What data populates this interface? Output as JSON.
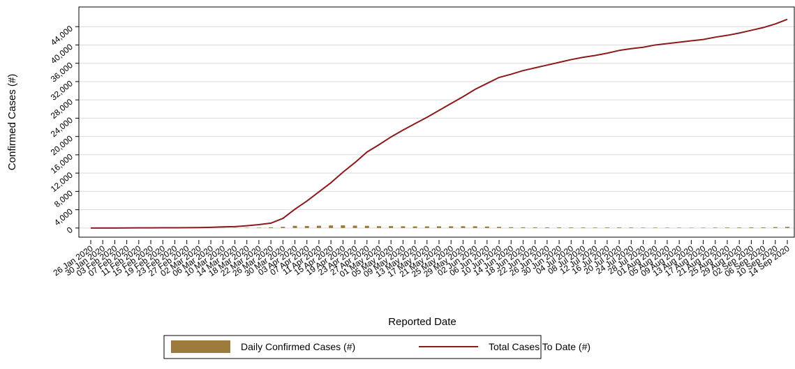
{
  "chart_data": {
    "type": "bar-line",
    "x_label": "Reported Date",
    "y_label": "Confirmed Cases (#)",
    "categories": [
      "26 Jan 2020",
      "30 Jan 2020",
      "03 Feb 2020",
      "07 Feb 2020",
      "11 Feb 2020",
      "15 Feb 2020",
      "19 Feb 2020",
      "23 Feb 2020",
      "27 Feb 2020",
      "02 Mar 2020",
      "06 Mar 2020",
      "10 Mar 2020",
      "14 Mar 2020",
      "18 Mar 2020",
      "22 Mar 2020",
      "26 Mar 2020",
      "30 Mar 2020",
      "03 Apr 2020",
      "07 Apr 2020",
      "11 Apr 2020",
      "15 Apr 2020",
      "19 Apr 2020",
      "23 Apr 2020",
      "27 Apr 2020",
      "01 May 2020",
      "05 May 2020",
      "09 May 2020",
      "13 May 2020",
      "17 May 2020",
      "21 May 2020",
      "25 May 2020",
      "29 May 2020",
      "02 Jun 2020",
      "06 Jun 2020",
      "10 Jun 2020",
      "14 Jun 2020",
      "18 Jun 2020",
      "22 Jun 2020",
      "26 Jun 2020",
      "30 Jun 2020",
      "04 Jul 2020",
      "08 Jul 2020",
      "12 Jul 2020",
      "16 Jul 2020",
      "20 Jul 2020",
      "24 Jul 2020",
      "28 Jul 2020",
      "01 Aug 2020",
      "05 Aug 2020",
      "09 Aug 2020",
      "13 Aug 2020",
      "17 Aug 2020",
      "21 Aug 2020",
      "25 Aug 2020",
      "29 Aug 2020",
      "02 Sep 2020",
      "06 Sep 2020",
      "10 Sep 2020",
      "14 Sep 2020"
    ],
    "series": [
      {
        "name": "Daily Confirmed Cases (#)",
        "type": "bar",
        "color": "#9c7a3c",
        "values": [
          0,
          1,
          2,
          3,
          2,
          2,
          3,
          3,
          5,
          6,
          12,
          25,
          40,
          60,
          80,
          150,
          260,
          480,
          450,
          500,
          560,
          580,
          520,
          480,
          400,
          420,
          380,
          350,
          360,
          370,
          380,
          390,
          380,
          320,
          250,
          180,
          160,
          150,
          140,
          140,
          130,
          120,
          110,
          120,
          130,
          110,
          90,
          100,
          80,
          80,
          75,
          80,
          100,
          110,
          120,
          140,
          150,
          200,
          250
        ]
      },
      {
        "name": "Total Cases To Date (#)",
        "type": "line",
        "color": "#8b1a1a",
        "values": [
          0,
          5,
          10,
          20,
          30,
          40,
          50,
          60,
          80,
          100,
          150,
          250,
          300,
          500,
          750,
          1060,
          2100,
          4100,
          5900,
          7900,
          9900,
          12200,
          14300,
          16600,
          18200,
          19900,
          21400,
          22800,
          24200,
          25700,
          27200,
          28700,
          30300,
          31600,
          32900,
          33600,
          34400,
          35000,
          35600,
          36200,
          36800,
          37300,
          37700,
          38200,
          38800,
          39200,
          39500,
          40000,
          40300,
          40600,
          40900,
          41200,
          41700,
          42100,
          42600,
          43200,
          43800,
          44600,
          45600
        ]
      }
    ],
    "ylim": [
      -2000,
      48300
    ],
    "yticks": [
      0,
      {
        "value": 4000,
        "label": "4,000"
      },
      {
        "value": 8000,
        "label": "8,000"
      },
      {
        "value": 12000,
        "label": "12,000"
      },
      {
        "value": 16000,
        "label": "16,000"
      },
      {
        "value": 20000,
        "label": "20,000"
      },
      {
        "value": 24000,
        "label": "24,000"
      },
      {
        "value": 28000,
        "label": "28,000"
      },
      {
        "value": 32000,
        "label": "32,000"
      },
      {
        "value": 36000,
        "label": "36,000"
      },
      {
        "value": 40000,
        "label": "40,000"
      },
      {
        "value": 44000,
        "label": "44,000"
      }
    ],
    "grid": true
  }
}
